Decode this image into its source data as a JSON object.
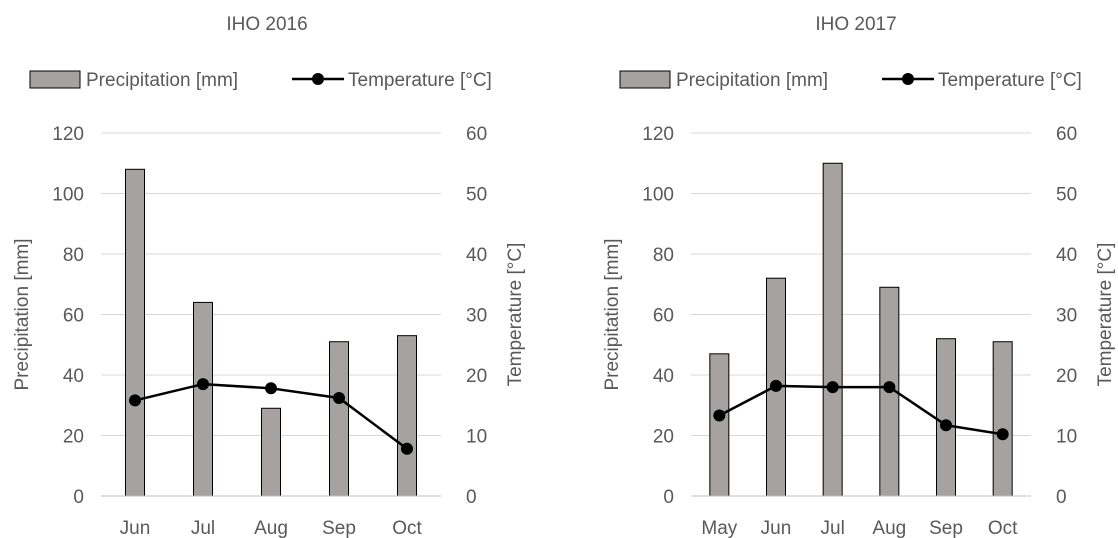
{
  "chart_data": [
    {
      "type": "bar",
      "title": "IHO 2016",
      "categories": [
        "Jun",
        "Jul",
        "Aug",
        "Sep",
        "Oct"
      ],
      "series": [
        {
          "name": "Precipitation [mm]",
          "kind": "bar",
          "axis": "left",
          "values": [
            108,
            64,
            29,
            51,
            53
          ]
        },
        {
          "name": "Temperature [°C]",
          "kind": "line",
          "axis": "right",
          "values": [
            15.8,
            18.5,
            17.8,
            16.2,
            7.8
          ]
        }
      ],
      "ylabel": "Precipitation [mm]",
      "y2label": "Temperature [°C]",
      "ylim": [
        0,
        120
      ],
      "y2lim": [
        0,
        60
      ],
      "yticks": [
        "0",
        "20",
        "40",
        "60",
        "80",
        "100",
        "120"
      ],
      "y2ticks": [
        "0",
        "10",
        "20",
        "30",
        "40",
        "50",
        "60"
      ],
      "grid": true,
      "legend_position": "top",
      "colors": {
        "bar_fill": "#a6a2a2",
        "bar_stroke": "#000000",
        "line": "#000000",
        "grid": "#d9d9d9"
      }
    },
    {
      "type": "bar",
      "title": "IHO 2017",
      "categories": [
        "May",
        "Jun",
        "Jul",
        "Aug",
        "Sep",
        "Oct"
      ],
      "series": [
        {
          "name": "Precipitation [mm]",
          "kind": "bar",
          "axis": "left",
          "values": [
            47,
            72,
            110,
            69,
            52,
            51
          ]
        },
        {
          "name": "Temperature [°C]",
          "kind": "line",
          "axis": "right",
          "values": [
            13.3,
            18.2,
            18,
            18,
            11.7,
            10.2
          ]
        }
      ],
      "ylabel": "Precipitation [mm]",
      "y2label": "Temperature [°C]",
      "ylim": [
        0,
        120
      ],
      "y2lim": [
        0,
        60
      ],
      "yticks": [
        "0",
        "20",
        "40",
        "60",
        "80",
        "100",
        "120"
      ],
      "y2ticks": [
        "0",
        "10",
        "20",
        "30",
        "40",
        "50",
        "60"
      ],
      "grid": true,
      "legend_position": "top",
      "colors": {
        "bar_fill": "#a6a2a2",
        "bar_stroke": "#000000",
        "line": "#000000",
        "grid": "#d9d9d9"
      }
    }
  ]
}
